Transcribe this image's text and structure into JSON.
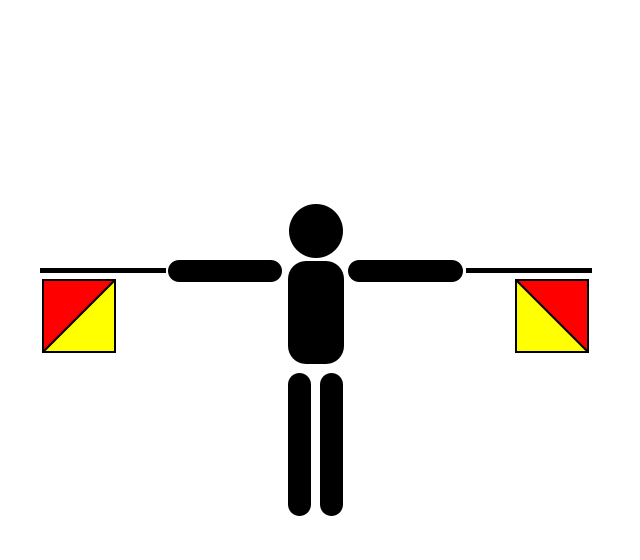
{
  "illustration": {
    "subject": "semaphore-signaller",
    "colors": {
      "background": "#ffffff",
      "figure": "#000000",
      "flag_upper": "#ff0000",
      "flag_lower": "#ffff00",
      "flag_outline": "#000000"
    },
    "icons": [
      "person-icon",
      "semaphore-flag-icon"
    ]
  }
}
